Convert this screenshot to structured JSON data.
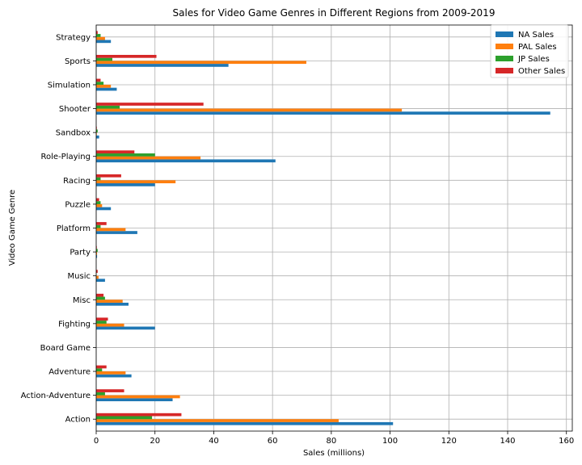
{
  "chart_data": {
    "type": "bar",
    "orientation": "horizontal",
    "title": "Sales for Video Game Genres in Different Regions from 2009-2019",
    "xlabel": "Sales (millions)",
    "ylabel": "Video Game Genre",
    "xlim": [
      0,
      162
    ],
    "xticks": [
      0,
      20,
      40,
      60,
      80,
      100,
      120,
      140,
      160
    ],
    "grid": true,
    "legend_position": "top-right",
    "categories": [
      "Action",
      "Action-Adventure",
      "Adventure",
      "Board Game",
      "Fighting",
      "Misc",
      "Music",
      "Party",
      "Platform",
      "Puzzle",
      "Racing",
      "Role-Playing",
      "Sandbox",
      "Shooter",
      "Simulation",
      "Sports",
      "Strategy"
    ],
    "series": [
      {
        "name": "NA Sales",
        "color": "#1f77b4",
        "values": [
          101,
          26,
          12,
          0,
          20,
          11,
          3,
          0.3,
          14,
          5,
          20,
          61,
          1,
          154.5,
          7,
          45,
          5
        ]
      },
      {
        "name": "PAL Sales",
        "color": "#ff7f0e",
        "values": [
          82.5,
          28.5,
          10,
          0,
          9.5,
          9,
          0.8,
          0.3,
          10,
          2,
          27,
          35.5,
          0.2,
          104,
          5,
          71.5,
          3
        ]
      },
      {
        "name": "JP Sales",
        "color": "#2ca02c",
        "values": [
          19,
          3,
          2,
          0,
          3.5,
          3,
          0.1,
          0.5,
          1.5,
          1.5,
          1.5,
          20,
          0.5,
          8,
          2.5,
          5.5,
          1.5
        ]
      },
      {
        "name": "Other Sales",
        "color": "#d62728",
        "values": [
          29,
          9.5,
          3.5,
          0,
          4,
          2.5,
          0.5,
          0.2,
          3.5,
          1,
          8.5,
          13,
          0.2,
          36.5,
          1.5,
          20.5,
          0.5
        ]
      }
    ]
  }
}
